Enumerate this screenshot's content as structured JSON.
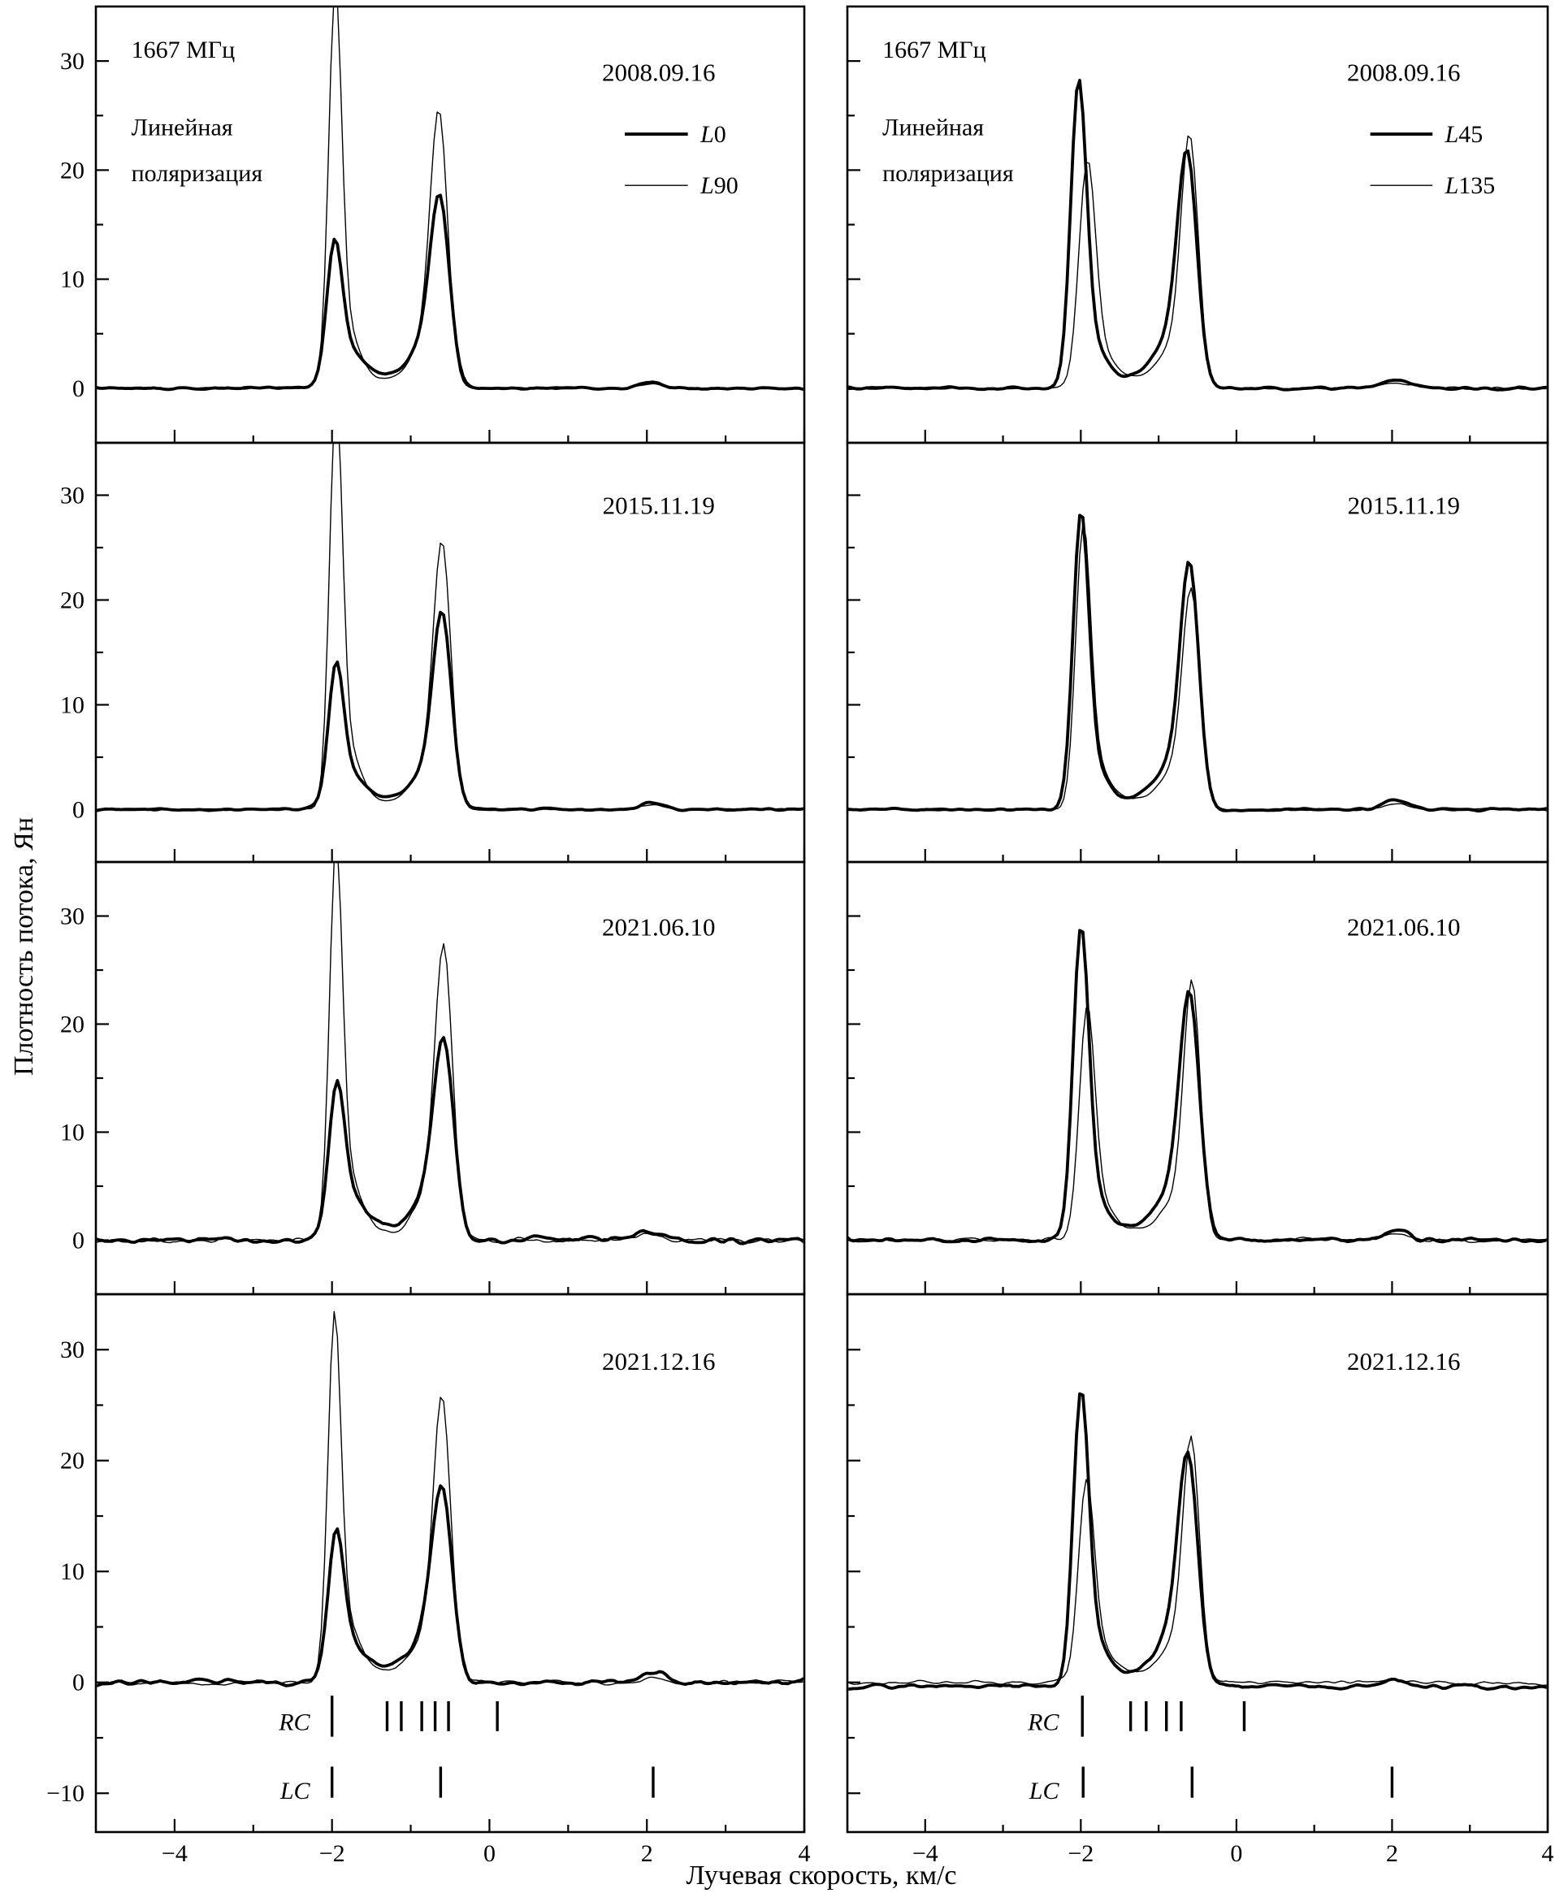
{
  "chart_data": {
    "type": "line",
    "title": "",
    "xlabel": "Лучевая скорость, км/с",
    "ylabel": "Плотность потока, Ян",
    "x_range": [
      -5,
      4
    ],
    "x_ticks": [
      -4,
      -2,
      0,
      2,
      4
    ],
    "x_minor_ticks": [
      -3,
      -1,
      1,
      3
    ],
    "rows": [
      {
        "y_ticks": [
          0,
          10,
          20,
          30
        ],
        "y_range": [
          -5,
          35
        ]
      },
      {
        "y_ticks": [
          0,
          10,
          20,
          30
        ],
        "y_range": [
          -5,
          35
        ]
      },
      {
        "y_ticks": [
          0,
          10,
          20,
          30
        ],
        "y_range": [
          -5,
          35
        ]
      },
      {
        "y_ticks": [
          -10,
          0,
          10,
          20,
          30
        ],
        "y_range": [
          -13.5,
          35
        ]
      }
    ],
    "columns": [
      {
        "header_lines": [
          "1667 МГц",
          "Линейная",
          "поляризация"
        ],
        "legend": [
          {
            "label": "L0",
            "style": "thick"
          },
          {
            "label": "L90",
            "style": "thin"
          }
        ]
      },
      {
        "header_lines": [
          "1667 МГц",
          "Линейная",
          "поляризация"
        ],
        "legend": [
          {
            "label": "L45",
            "style": "thick"
          },
          {
            "label": "L135",
            "style": "thin"
          }
        ]
      }
    ],
    "panels": [
      {
        "col": 0,
        "row": 0,
        "date": "2008.09.16",
        "series": [
          {
            "name": "L0",
            "style": "thick",
            "noise": 0.12,
            "components": [
              [
                -1.97,
                11.3,
                0.095
              ],
              [
                -1.8,
                3.4,
                0.2
              ],
              [
                -1.3,
                1.0,
                0.25
              ],
              [
                -0.86,
                3.2,
                0.18
              ],
              [
                -0.63,
                16.3,
                0.125
              ],
              [
                2.05,
                0.55,
                0.14
              ]
            ]
          },
          {
            "name": "L90",
            "style": "thin",
            "noise": 0.12,
            "components": [
              [
                -1.96,
                32.8,
                0.082
              ],
              [
                -1.83,
                5.5,
                0.17
              ],
              [
                -1.3,
                0.8,
                0.25
              ],
              [
                -0.85,
                3.6,
                0.17
              ],
              [
                -0.64,
                23.8,
                0.112
              ],
              [
                2.05,
                0.4,
                0.14
              ]
            ]
          }
        ]
      },
      {
        "col": 0,
        "row": 1,
        "date": "2015.11.19",
        "series": [
          {
            "name": "L0",
            "style": "thick",
            "noise": 0.13,
            "components": [
              [
                -1.95,
                11.8,
                0.095
              ],
              [
                -1.78,
                3.2,
                0.2
              ],
              [
                -1.28,
                0.9,
                0.25
              ],
              [
                -0.84,
                3.0,
                0.18
              ],
              [
                -0.6,
                17.8,
                0.12
              ],
              [
                2.05,
                0.7,
                0.14
              ]
            ]
          },
          {
            "name": "L90",
            "style": "thin",
            "noise": 0.13,
            "components": [
              [
                -1.95,
                35.5,
                0.082
              ],
              [
                -1.8,
                5.5,
                0.17
              ],
              [
                -1.28,
                0.7,
                0.25
              ],
              [
                -0.83,
                3.4,
                0.17
              ],
              [
                -0.6,
                24.3,
                0.112
              ],
              [
                2.05,
                0.5,
                0.14
              ]
            ]
          }
        ]
      },
      {
        "col": 0,
        "row": 2,
        "date": "2021.06.10",
        "series": [
          {
            "name": "L0",
            "style": "thick",
            "noise": 0.32,
            "components": [
              [
                -1.94,
                12.3,
                0.1
              ],
              [
                -1.77,
                3.4,
                0.2
              ],
              [
                -1.25,
                1.1,
                0.28
              ],
              [
                -0.82,
                3.2,
                0.18
              ],
              [
                -0.58,
                17.2,
                0.13
              ],
              [
                2.05,
                0.8,
                0.16
              ]
            ]
          },
          {
            "name": "L90",
            "style": "thin",
            "noise": 0.28,
            "components": [
              [
                -1.95,
                33.2,
                0.082
              ],
              [
                -1.79,
                5.5,
                0.17
              ],
              [
                -1.25,
                0.8,
                0.28
              ],
              [
                -0.8,
                3.6,
                0.17
              ],
              [
                -0.58,
                25.8,
                0.112
              ],
              [
                2.05,
                0.5,
                0.16
              ]
            ]
          }
        ]
      },
      {
        "col": 0,
        "row": 3,
        "date": "2021.12.16",
        "series": [
          {
            "name": "L0",
            "style": "thick",
            "noise": 0.28,
            "components": [
              [
                -1.95,
                11.4,
                0.1
              ],
              [
                -1.78,
                3.2,
                0.2
              ],
              [
                -1.25,
                1.2,
                0.28
              ],
              [
                -0.83,
                3.2,
                0.18
              ],
              [
                -0.6,
                16.2,
                0.13
              ],
              [
                2.1,
                1.0,
                0.14
              ]
            ]
          },
          {
            "name": "L90",
            "style": "thin",
            "noise": 0.25,
            "components": [
              [
                -1.97,
                30.3,
                0.082
              ],
              [
                -1.81,
                5.2,
                0.17
              ],
              [
                -1.25,
                1.0,
                0.28
              ],
              [
                -0.82,
                3.4,
                0.17
              ],
              [
                -0.6,
                24.3,
                0.112
              ],
              [
                2.1,
                0.5,
                0.14
              ]
            ]
          }
        ],
        "markers": {
          "rc_label": "RC",
          "lc_label": "LC",
          "rc": [
            -2.0,
            -1.3,
            -1.12,
            -0.86,
            -0.69,
            -0.52,
            0.1
          ],
          "lc": [
            -2.0,
            -0.62,
            2.08
          ]
        }
      },
      {
        "col": 1,
        "row": 0,
        "date": "2008.09.16",
        "series": [
          {
            "name": "L45",
            "style": "thick",
            "noise": 0.13,
            "components": [
              [
                -2.03,
                25.8,
                0.1
              ],
              [
                -1.86,
                4.0,
                0.18
              ],
              [
                -1.2,
                1.2,
                0.3
              ],
              [
                -0.85,
                3.6,
                0.19
              ],
              [
                -0.63,
                19.8,
                0.125
              ],
              [
                2.05,
                0.8,
                0.16
              ]
            ]
          },
          {
            "name": "L135",
            "style": "thin",
            "noise": 0.13,
            "components": [
              [
                -1.92,
                18.8,
                0.105
              ],
              [
                -1.76,
                3.2,
                0.18
              ],
              [
                -1.2,
                1.0,
                0.3
              ],
              [
                -0.82,
                3.0,
                0.17
              ],
              [
                -0.6,
                21.8,
                0.112
              ],
              [
                2.05,
                0.5,
                0.16
              ]
            ]
          }
        ]
      },
      {
        "col": 1,
        "row": 1,
        "date": "2015.11.19",
        "series": [
          {
            "name": "L45",
            "style": "thick",
            "noise": 0.13,
            "components": [
              [
                -2.0,
                25.8,
                0.1
              ],
              [
                -1.84,
                4.0,
                0.18
              ],
              [
                -1.2,
                1.2,
                0.3
              ],
              [
                -0.83,
                3.6,
                0.19
              ],
              [
                -0.6,
                21.8,
                0.12
              ],
              [
                2.05,
                0.9,
                0.16
              ]
            ]
          },
          {
            "name": "L135",
            "style": "thin",
            "noise": 0.13,
            "components": [
              [
                -1.97,
                24.6,
                0.095
              ],
              [
                -1.81,
                4.0,
                0.18
              ],
              [
                -1.2,
                1.0,
                0.3
              ],
              [
                -0.81,
                3.0,
                0.17
              ],
              [
                -0.58,
                19.8,
                0.112
              ],
              [
                2.05,
                0.6,
                0.16
              ]
            ]
          }
        ]
      },
      {
        "col": 1,
        "row": 2,
        "date": "2021.06.10",
        "series": [
          {
            "name": "L45",
            "style": "thick",
            "noise": 0.25,
            "components": [
              [
                -2.0,
                26.3,
                0.1
              ],
              [
                -1.84,
                4.0,
                0.18
              ],
              [
                -1.2,
                1.3,
                0.3
              ],
              [
                -0.83,
                3.6,
                0.19
              ],
              [
                -0.6,
                21.3,
                0.128
              ],
              [
                2.05,
                1.0,
                0.16
              ]
            ]
          },
          {
            "name": "L135",
            "style": "thin",
            "noise": 0.22,
            "components": [
              [
                -1.92,
                19.3,
                0.1
              ],
              [
                -1.76,
                3.2,
                0.18
              ],
              [
                -1.2,
                1.0,
                0.3
              ],
              [
                -0.79,
                3.0,
                0.17
              ],
              [
                -0.57,
                22.8,
                0.108
              ],
              [
                2.05,
                0.6,
                0.16
              ]
            ]
          }
        ]
      },
      {
        "col": 1,
        "row": 3,
        "date": "2021.12.16",
        "series": [
          {
            "name": "L45",
            "style": "thick",
            "noise": 0.25,
            "baseline": -0.35,
            "components": [
              [
                -2.0,
                24.2,
                0.1
              ],
              [
                -1.84,
                4.0,
                0.18
              ],
              [
                -1.2,
                1.2,
                0.3
              ],
              [
                -0.85,
                3.6,
                0.19
              ],
              [
                -0.62,
                19.2,
                0.128
              ],
              [
                2.0,
                0.5,
                0.16
              ]
            ]
          },
          {
            "name": "L135",
            "style": "thin",
            "noise": 0.22,
            "components": [
              [
                -1.93,
                16.3,
                0.1
              ],
              [
                -1.77,
                3.0,
                0.18
              ],
              [
                -1.2,
                0.9,
                0.3
              ],
              [
                -0.81,
                2.8,
                0.17
              ],
              [
                -0.58,
                20.8,
                0.108
              ],
              [
                2.0,
                0.3,
                0.16
              ]
            ]
          }
        ],
        "markers": {
          "rc_label": "RC",
          "lc_label": "LC",
          "rc": [
            -1.98,
            -1.36,
            -1.16,
            -0.9,
            -0.71,
            0.1
          ],
          "lc": [
            -1.97,
            -0.57,
            2.0
          ]
        }
      }
    ]
  }
}
